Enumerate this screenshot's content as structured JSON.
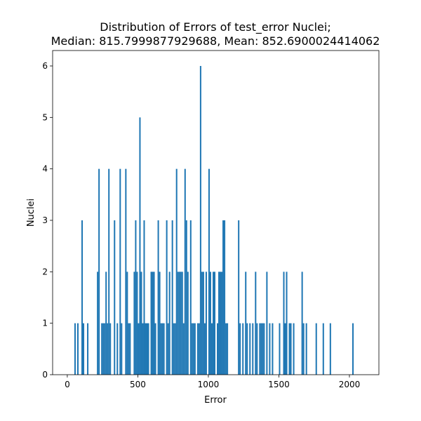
{
  "chart_data": {
    "type": "histogram",
    "title": [
      "Distribution of Errors of test_error Nuclei;",
      "Median: 815.7999877929688, Mean: 852.6900024414062"
    ],
    "x_label": "Error",
    "y_label": "Nuclei",
    "color": "#1f77b4",
    "bins": [
      50,
      60,
      70,
      80,
      90,
      100,
      110,
      120,
      130,
      140,
      150,
      160,
      170,
      180,
      190,
      200,
      210,
      220,
      230,
      240,
      250,
      260,
      270,
      280,
      290,
      300,
      310,
      320,
      330,
      340,
      350,
      360,
      370,
      380,
      390,
      400,
      410,
      420,
      430,
      440,
      450,
      460,
      470,
      480,
      490,
      500,
      510,
      520,
      530,
      540,
      550,
      560,
      570,
      580,
      590,
      600,
      610,
      620,
      630,
      640,
      650,
      660,
      670,
      680,
      690,
      700,
      710,
      720,
      730,
      740,
      750,
      760,
      770,
      780,
      790,
      800,
      810,
      820,
      830,
      840,
      850,
      860,
      870,
      880,
      890,
      900,
      910,
      920,
      930,
      940,
      950,
      960,
      970,
      980,
      990,
      1000,
      1010,
      1020,
      1030,
      1040,
      1050,
      1060,
      1070,
      1080,
      1090,
      1100,
      1110,
      1120,
      1130,
      1140,
      1150,
      1160,
      1170,
      1180,
      1190,
      1200,
      1210,
      1220,
      1230,
      1240,
      1250,
      1260,
      1270,
      1280,
      1290,
      1300,
      1310,
      1320,
      1330,
      1340,
      1350,
      1360,
      1370,
      1380,
      1390,
      1400,
      1410,
      1420,
      1430,
      1440,
      1450,
      1460,
      1470,
      1480,
      1490,
      1500,
      1510,
      1520,
      1530,
      1540,
      1550,
      1560,
      1570,
      1580,
      1590,
      1600,
      1610,
      1620,
      1630,
      1640,
      1650,
      1660,
      1670,
      1680,
      1690,
      1700,
      1710,
      1720,
      1730,
      1740,
      1750,
      1760,
      1770,
      1780,
      1790,
      1800,
      1810,
      1820,
      1830,
      1840,
      1850,
      1860,
      1870,
      1880,
      1890,
      1900,
      1910,
      1920,
      1930,
      1940,
      1950,
      1960,
      1970,
      1980,
      1990,
      2000,
      2010,
      2020,
      2030,
      2040,
      2050
    ],
    "counts": [
      1,
      0,
      1,
      0,
      0,
      3,
      1,
      0,
      0,
      1,
      0,
      0,
      0,
      0,
      0,
      0,
      2,
      4,
      0,
      1,
      1,
      1,
      2,
      1,
      4,
      1,
      0,
      0,
      3,
      0,
      1,
      0,
      4,
      1,
      0,
      0,
      4,
      2,
      1,
      1,
      0,
      0,
      2,
      3,
      2,
      1,
      5,
      2,
      1,
      3,
      1,
      1,
      1,
      0,
      2,
      2,
      2,
      1,
      0,
      3,
      2,
      1,
      1,
      1,
      0,
      3,
      1,
      2,
      0,
      3,
      1,
      1,
      4,
      2,
      2,
      2,
      2,
      1,
      4,
      3,
      2,
      0,
      3,
      1,
      1,
      1,
      0,
      1,
      1,
      6,
      2,
      2,
      1,
      2,
      0,
      4,
      2,
      1,
      2,
      2,
      0,
      1,
      2,
      2,
      2,
      3,
      3,
      1,
      1,
      0,
      0,
      0,
      0,
      0,
      0,
      0,
      3,
      1,
      0,
      1,
      0,
      2,
      1,
      0,
      1,
      0,
      1,
      0,
      2,
      1,
      0,
      1,
      1,
      1,
      1,
      0,
      2,
      0,
      1,
      0,
      1,
      0,
      0,
      0,
      0,
      1,
      0,
      0,
      2,
      1,
      2,
      0,
      1,
      1,
      0,
      1,
      0,
      0,
      0,
      0,
      0,
      2,
      1,
      0,
      1,
      0,
      0,
      0,
      0,
      0,
      0,
      1,
      0,
      0,
      0,
      0,
      1,
      0,
      0,
      0,
      0,
      1,
      0,
      0,
      0,
      0,
      0,
      0,
      0,
      0,
      0,
      0,
      0,
      0,
      0,
      0,
      0,
      1,
      0,
      0
    ],
    "xlim": [
      -104,
      2209
    ],
    "xticks": [
      0,
      500,
      1000,
      1500,
      2000
    ],
    "ylim": [
      0,
      6.3
    ],
    "yticks": [
      0,
      1,
      2,
      3,
      4,
      5,
      6
    ]
  }
}
